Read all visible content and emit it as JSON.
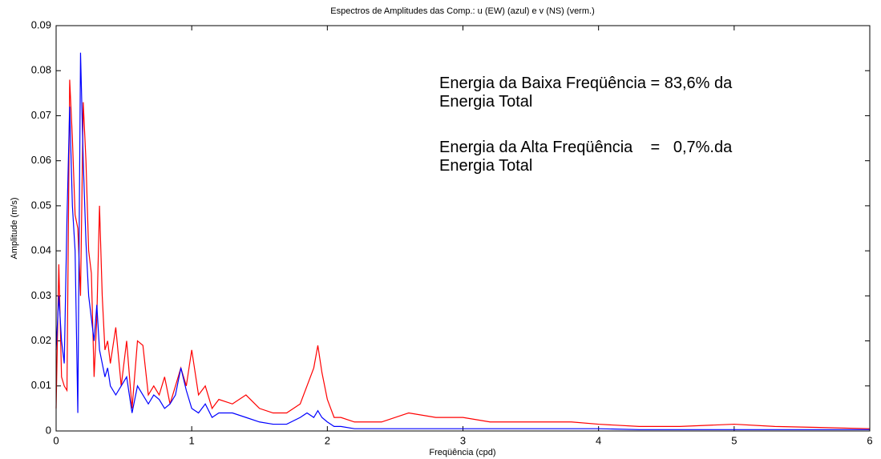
{
  "chart_data": {
    "type": "line",
    "title": "Espectros de Amplitudes das Comp.: u (EW) (azul) e v (NS) (verm.)",
    "xlabel": "Freqüência (cpd)",
    "ylabel": "Amplitude (m/s)",
    "annotations": [
      "Energia da Baixa Freqüência = 83,6% da",
      "Energia Total",
      "Energia da Alta Freqüência    =   0,7%.da",
      "Energia Total"
    ],
    "x": [
      0,
      0.02,
      0.04,
      0.06,
      0.08,
      0.1,
      0.12,
      0.14,
      0.16,
      0.18,
      0.2,
      0.22,
      0.24,
      0.26,
      0.28,
      0.3,
      0.32,
      0.34,
      0.36,
      0.38,
      0.4,
      0.44,
      0.48,
      0.52,
      0.56,
      0.6,
      0.64,
      0.68,
      0.72,
      0.76,
      0.8,
      0.84,
      0.88,
      0.92,
      0.96,
      1.0,
      1.05,
      1.1,
      1.15,
      1.2,
      1.3,
      1.4,
      1.5,
      1.6,
      1.7,
      1.8,
      1.85,
      1.9,
      1.93,
      1.96,
      2.0,
      2.05,
      2.1,
      2.2,
      2.4,
      2.6,
      2.8,
      3.0,
      3.2,
      3.4,
      3.6,
      3.8,
      4.0,
      4.3,
      4.6,
      5.0,
      5.3,
      5.6,
      6.0
    ],
    "series": [
      {
        "color": "#ff0000",
        "values": [
          0.005,
          0.037,
          0.012,
          0.01,
          0.009,
          0.078,
          0.065,
          0.048,
          0.045,
          0.03,
          0.073,
          0.06,
          0.04,
          0.035,
          0.012,
          0.025,
          0.05,
          0.03,
          0.018,
          0.02,
          0.015,
          0.023,
          0.01,
          0.02,
          0.005,
          0.02,
          0.019,
          0.008,
          0.01,
          0.008,
          0.012,
          0.006,
          0.01,
          0.014,
          0.01,
          0.018,
          0.008,
          0.01,
          0.005,
          0.007,
          0.006,
          0.008,
          0.005,
          0.004,
          0.004,
          0.006,
          0.01,
          0.014,
          0.019,
          0.013,
          0.007,
          0.003,
          0.003,
          0.002,
          0.002,
          0.004,
          0.003,
          0.003,
          0.002,
          0.002,
          0.002,
          0.002,
          0.0015,
          0.001,
          0.001,
          0.0015,
          0.001,
          0.0008,
          0.0005
        ]
      },
      {
        "color": "#0000ff",
        "values": [
          0.018,
          0.03,
          0.02,
          0.015,
          0.047,
          0.072,
          0.05,
          0.04,
          0.004,
          0.084,
          0.06,
          0.042,
          0.03,
          0.025,
          0.02,
          0.028,
          0.018,
          0.015,
          0.012,
          0.014,
          0.01,
          0.008,
          0.01,
          0.012,
          0.004,
          0.01,
          0.008,
          0.006,
          0.008,
          0.007,
          0.005,
          0.006,
          0.008,
          0.014,
          0.009,
          0.005,
          0.004,
          0.006,
          0.003,
          0.004,
          0.004,
          0.003,
          0.002,
          0.0015,
          0.0015,
          0.003,
          0.004,
          0.003,
          0.0045,
          0.003,
          0.002,
          0.001,
          0.001,
          0.0005,
          0.0005,
          0.0005,
          0.0005,
          0.0005,
          0.0005,
          0.0005,
          0.0005,
          0.0005,
          0.0005,
          0.0003,
          0.0003,
          0.0003,
          0.0003,
          0.0003,
          0.0003
        ]
      }
    ],
    "xlim": [
      0,
      6
    ],
    "xticks": [
      0,
      1,
      2,
      3,
      4,
      5,
      6
    ],
    "ylim": [
      0,
      0.09
    ],
    "yticks": [
      0,
      0.01,
      0.02,
      0.03,
      0.04,
      0.05,
      0.06,
      0.07,
      0.08,
      0.09
    ],
    "grid": false
  }
}
